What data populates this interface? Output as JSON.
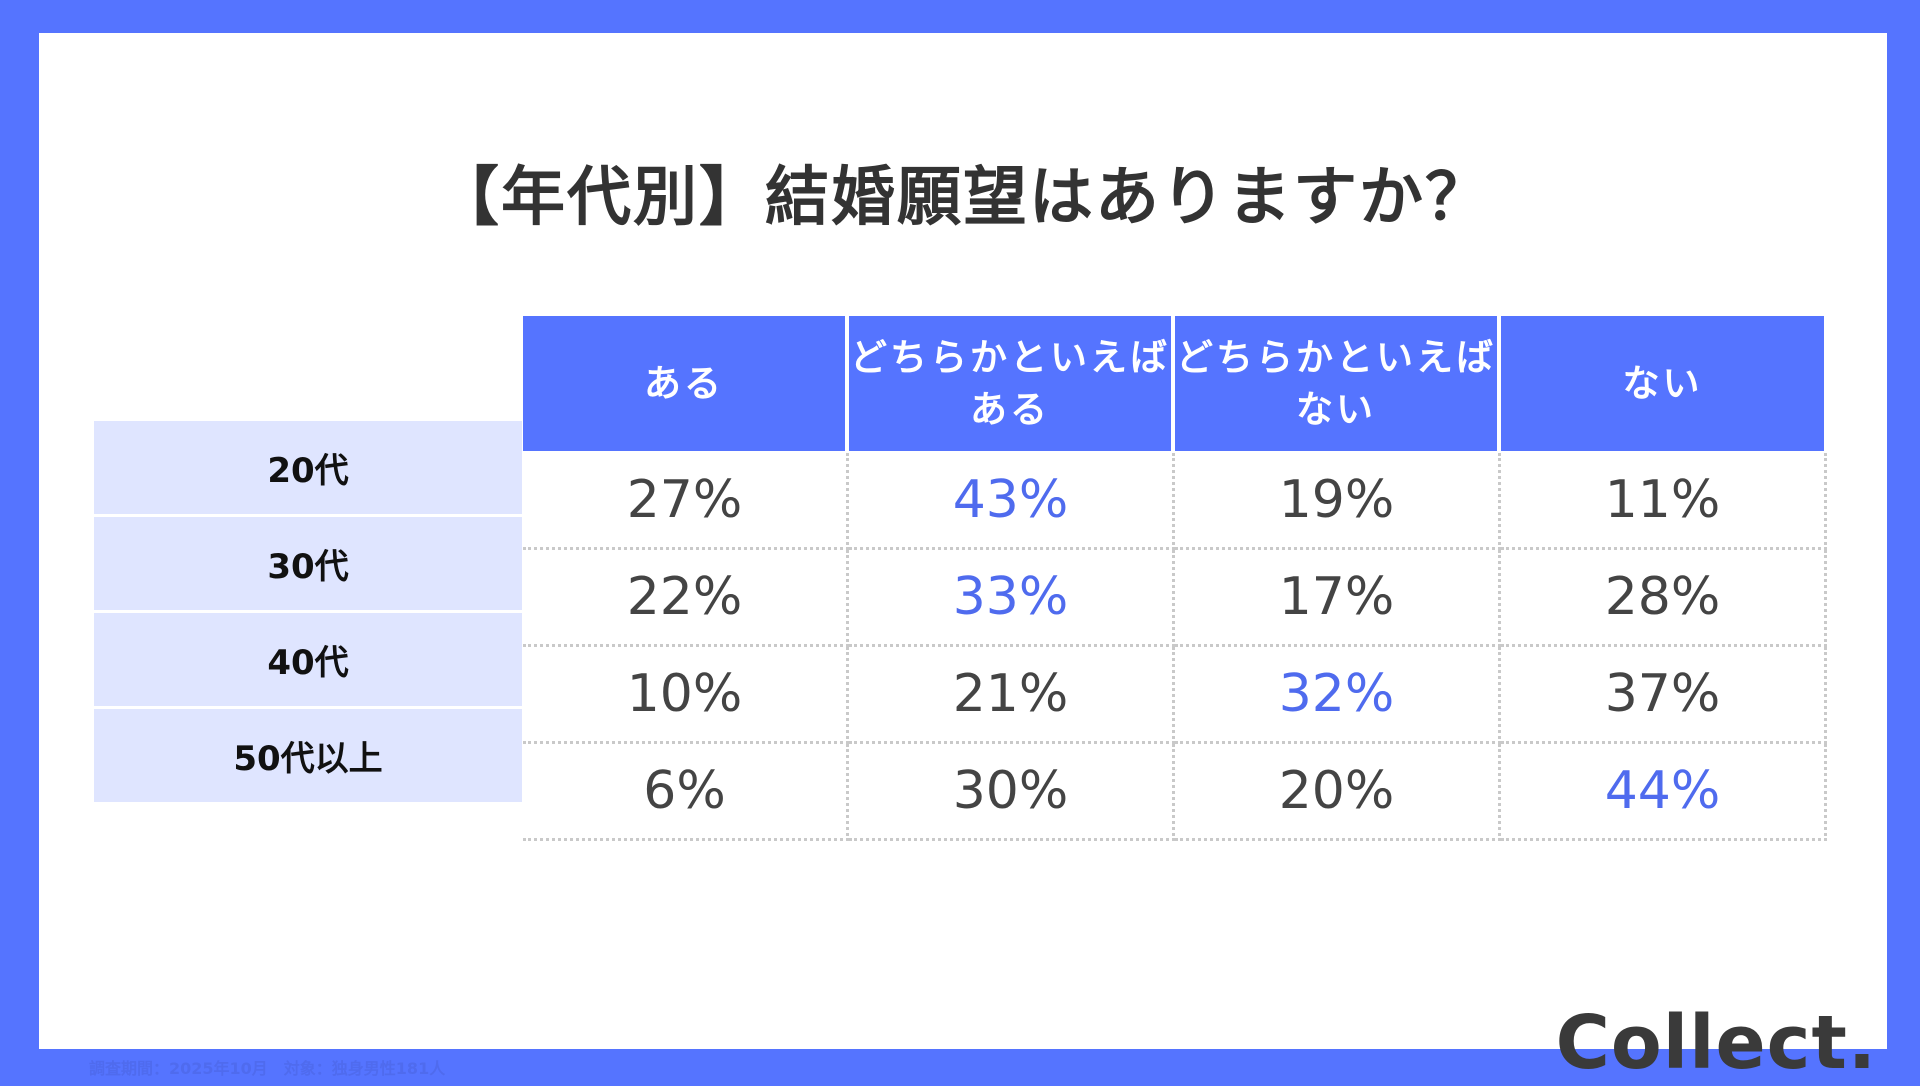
{
  "title": "【年代別】結婚願望はありますか？",
  "colors": {
    "frame": "#5574FF",
    "header_bg": "#5574FF",
    "row_label_bg": "#DFE5FF",
    "highlight_text": "#4F6BEE",
    "text": "#444444"
  },
  "table": {
    "columns": [
      {
        "line1": "ある",
        "line2": ""
      },
      {
        "line1": "どちらかといえば",
        "line2": "ある"
      },
      {
        "line1": "どちらかといえば",
        "line2": "ない"
      },
      {
        "line1": "ない",
        "line2": ""
      }
    ],
    "rows": [
      {
        "label": "20代",
        "values": [
          "27%",
          "43%",
          "19%",
          "11%"
        ],
        "highlight_index": 1
      },
      {
        "label": "30代",
        "values": [
          "22%",
          "33%",
          "17%",
          "28%"
        ],
        "highlight_index": 1
      },
      {
        "label": "40代",
        "values": [
          "10%",
          "21%",
          "32%",
          "37%"
        ],
        "highlight_index": 2
      },
      {
        "label": "50代以上",
        "values": [
          "6%",
          "30%",
          "20%",
          "44%"
        ],
        "highlight_index": 3
      }
    ]
  },
  "footer": {
    "note": "調査期間：2025年10月　対象：独身男性181人"
  },
  "logo": "Collect."
}
